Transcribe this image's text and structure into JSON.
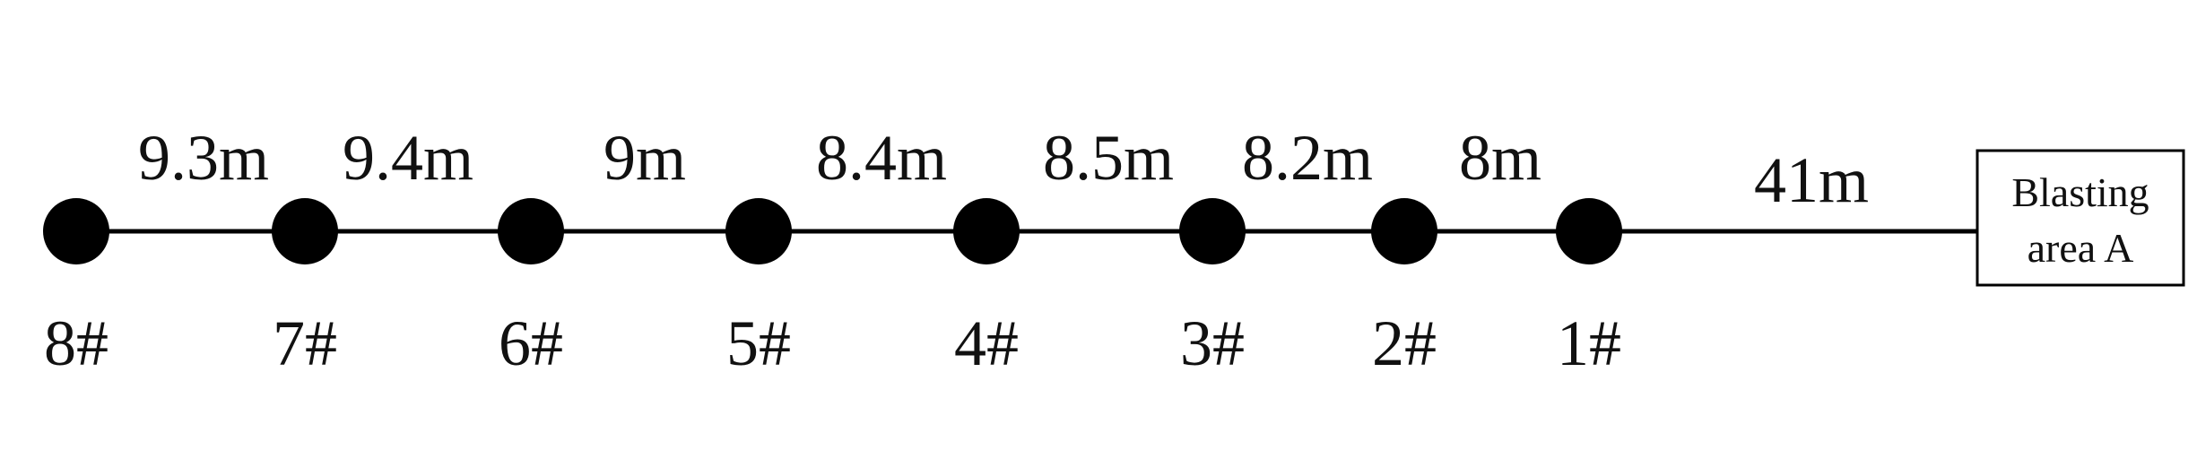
{
  "colors": {
    "line": "#000000",
    "node": "#000000",
    "text": "#111111",
    "box_border": "#000000",
    "background": "#ffffff"
  },
  "stations": [
    "8#",
    "7#",
    "6#",
    "5#",
    "4#",
    "3#",
    "2#",
    "1#"
  ],
  "distances": [
    "9.3m",
    "9.4m",
    "9m",
    "8.4m",
    "8.5m",
    "8.2m",
    "8m"
  ],
  "blast_distance": "41m",
  "blast_area": {
    "line1": "Blasting",
    "line2": "area A"
  }
}
